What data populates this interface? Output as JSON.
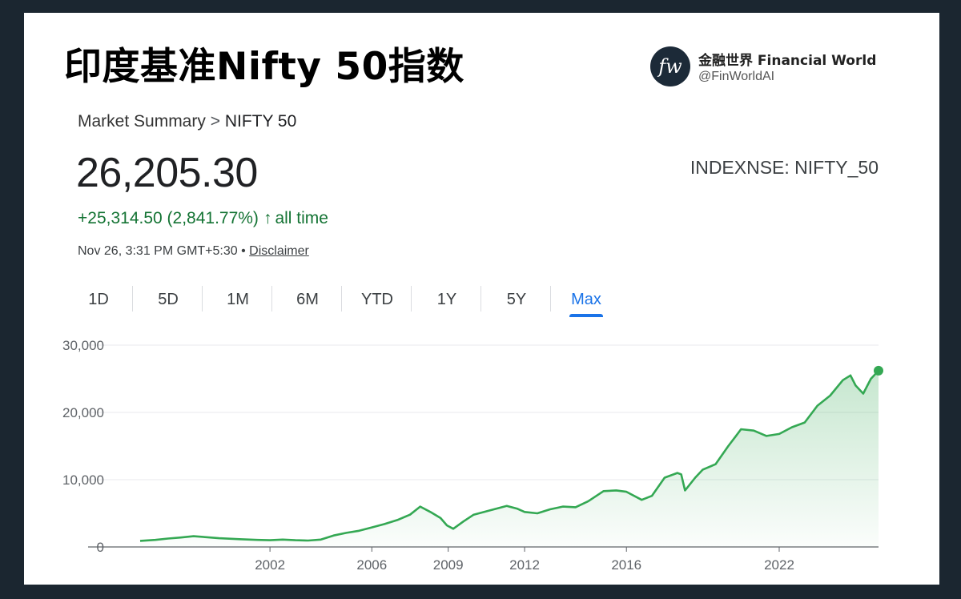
{
  "headline": "印度基准Nifty 50指数",
  "brand": {
    "name": "金融世界 Financial World",
    "handle": "@FinWorldAI",
    "logo_text": "fw"
  },
  "breadcrumb": {
    "parent": "Market Summary",
    "separator": ">",
    "current": "NIFTY 50"
  },
  "quote": {
    "price": "26,205.30",
    "ticker": "INDEXNSE: NIFTY_50",
    "change": "+25,314.50 (2,841.77%)",
    "change_arrow": "↑",
    "change_period": "all time",
    "timestamp": "Nov 26, 3:31 PM GMT+5:30",
    "bullet": "•",
    "disclaimer": "Disclaimer"
  },
  "tabs": [
    {
      "label": "1D",
      "active": false
    },
    {
      "label": "5D",
      "active": false
    },
    {
      "label": "1M",
      "active": false
    },
    {
      "label": "6M",
      "active": false
    },
    {
      "label": "YTD",
      "active": false
    },
    {
      "label": "1Y",
      "active": false
    },
    {
      "label": "5Y",
      "active": false
    },
    {
      "label": "Max",
      "active": true
    }
  ],
  "chart_data": {
    "type": "area",
    "title": "",
    "xlabel": "",
    "ylabel": "",
    "ylim": [
      0,
      30000
    ],
    "xlim": [
      1995.8,
      2025.9
    ],
    "yticks": [
      {
        "value": 0,
        "label": "0"
      },
      {
        "value": 10000,
        "label": "10,000"
      },
      {
        "value": 20000,
        "label": "20,000"
      },
      {
        "value": 30000,
        "label": "30,000"
      }
    ],
    "xticks": [
      {
        "value": 2002,
        "label": "2002"
      },
      {
        "value": 2006,
        "label": "2006"
      },
      {
        "value": 2009,
        "label": "2009"
      },
      {
        "value": 2012,
        "label": "2012"
      },
      {
        "value": 2016,
        "label": "2016"
      },
      {
        "value": 2022,
        "label": "2022"
      }
    ],
    "grid": true,
    "colors": {
      "line": "#34a853",
      "fill": "#34a853",
      "grid": "#e8eaed",
      "axis": "#5f6368",
      "tick_label": "#5f6368"
    },
    "series": [
      {
        "x": [
          1996.9,
          1997.5,
          1998.0,
          1998.5,
          1999.0,
          1999.5,
          2000.0,
          2000.8,
          2001.5,
          2002.0,
          2002.5,
          2003.0,
          2003.5,
          2004.0,
          2004.5,
          2005.0,
          2005.5,
          2006.0,
          2006.5,
          2007.0,
          2007.5,
          2007.9,
          2008.3,
          2008.7,
          2008.95,
          2009.2,
          2009.6,
          2010.0,
          2010.5,
          2010.9,
          2011.3,
          2011.7,
          2012.0,
          2012.5,
          2013.0,
          2013.5,
          2014.0,
          2014.5,
          2015.1,
          2015.6,
          2016.0,
          2016.2,
          2016.6,
          2017.0,
          2017.5,
          2018.0,
          2018.15,
          2018.3,
          2018.7,
          2019.0,
          2019.5,
          2020.0,
          2020.3,
          2020.5,
          2021.0,
          2021.5,
          2022.0,
          2022.5,
          2023.0,
          2023.5,
          2024.0,
          2024.5,
          2024.8,
          2025.0,
          2025.3,
          2025.6,
          2025.9
        ],
        "y": [
          900,
          1050,
          1250,
          1400,
          1600,
          1450,
          1300,
          1150,
          1050,
          1000,
          1100,
          1000,
          950,
          1100,
          1700,
          2100,
          2400,
          2900,
          3400,
          4000,
          4800,
          6000,
          5200,
          4300,
          3200,
          2700,
          3800,
          4800,
          5300,
          5700,
          6100,
          5700,
          5200,
          5000,
          5600,
          6000,
          5900,
          6800,
          8300,
          8400,
          8200,
          7800,
          7000,
          7600,
          10300,
          11000,
          10800,
          8400,
          10300,
          11500,
          12300,
          15000,
          16500,
          17500,
          17300,
          16500,
          16800,
          17800,
          18500,
          21000,
          22500,
          24800,
          25500,
          24000,
          22800,
          25000,
          26205
        ]
      }
    ],
    "last_point": {
      "x": 2025.9,
      "y": 26205
    }
  }
}
